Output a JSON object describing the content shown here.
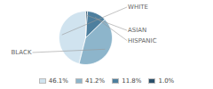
{
  "chart_data": {
    "type": "pie",
    "categories": [
      "WHITE",
      "BLACK",
      "HISPANIC",
      "ASIAN"
    ],
    "values": [
      46.1,
      41.2,
      11.8,
      1.0
    ],
    "value_labels": [
      "46.1%",
      "41.2%",
      "11.8%",
      "1.0%"
    ],
    "colors": [
      "#d0e3ef",
      "#8db5cb",
      "#4d7f9e",
      "#2b506a"
    ],
    "legend": "bottom"
  }
}
